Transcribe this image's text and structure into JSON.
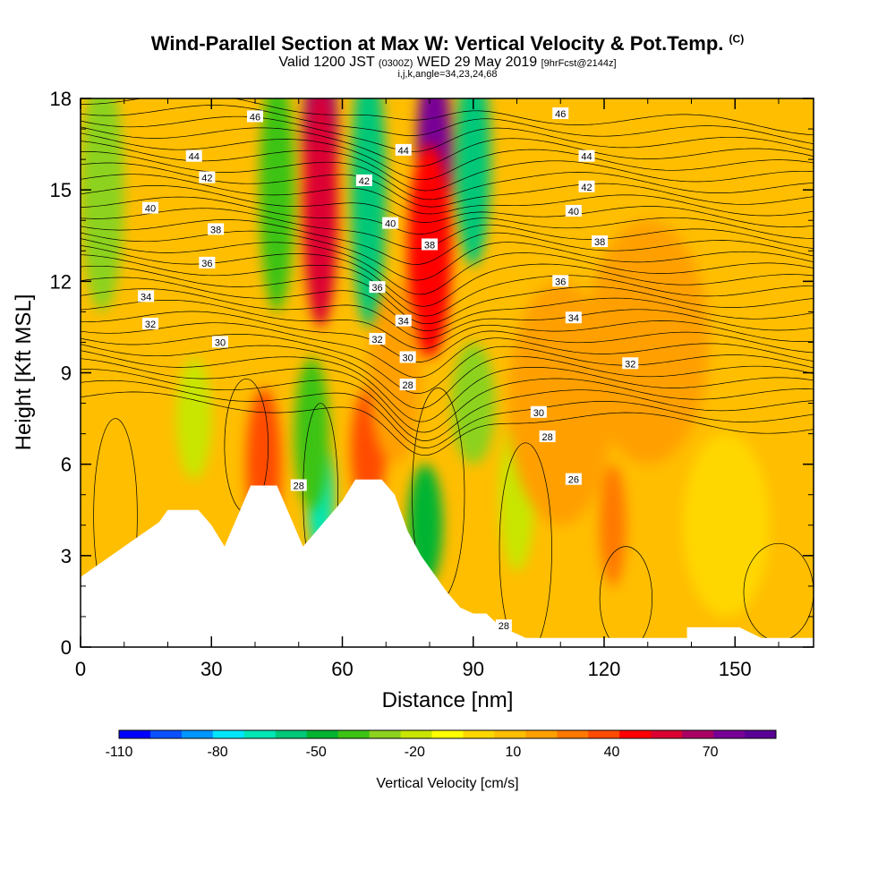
{
  "header": {
    "title_main": "Wind-Parallel Section at Max W: Vertical Velocity & Pot.Temp.",
    "title_mark": "(C)",
    "subtitle_a": "Valid 1200 JST",
    "subtitle_b": "(0300Z)",
    "subtitle_c": "WED 29 May 2019",
    "subtitle_d": "[9hrFcst@2144z]",
    "info_line": "i,j,k,angle=34,23,24,68"
  },
  "chart_data": {
    "type": "heatmap",
    "xlabel": "Distance [nm]",
    "ylabel": "Height [Kft MSL]",
    "xlim": [
      0,
      168
    ],
    "ylim": [
      0,
      18
    ],
    "x_ticks": [
      "0",
      "30",
      "60",
      "90",
      "120",
      "150"
    ],
    "x_tick_values": [
      0,
      30,
      60,
      90,
      120,
      150
    ],
    "y_ticks": [
      "0",
      "3",
      "6",
      "9",
      "12",
      "15",
      "18"
    ],
    "y_tick_values": [
      0,
      3,
      6,
      9,
      12,
      15,
      18
    ],
    "grid": false,
    "background_value_cms": 5,
    "vertical_velocity_features": [
      {
        "x": 55,
        "y": 16.5,
        "w": 4,
        "h": 3.0,
        "value": 80
      },
      {
        "x": 55,
        "y": 14.5,
        "w": 4,
        "h": 4.0,
        "value": 55
      },
      {
        "x": 81,
        "y": 16.0,
        "w": 4,
        "h": 3.5,
        "value": 75
      },
      {
        "x": 80,
        "y": 13.0,
        "w": 5,
        "h": 3.5,
        "value": 50
      },
      {
        "x": 66,
        "y": 15.0,
        "w": 4,
        "h": 4.5,
        "value": -60
      },
      {
        "x": 90,
        "y": 16.0,
        "w": 4,
        "h": 3.5,
        "value": -60
      },
      {
        "x": 45,
        "y": 15.0,
        "w": 4,
        "h": 4.0,
        "value": -40
      },
      {
        "x": 5,
        "y": 15.0,
        "w": 5,
        "h": 4.0,
        "value": -30
      },
      {
        "x": 55,
        "y": 5.0,
        "w": 3,
        "h": 2.0,
        "value": -65
      },
      {
        "x": 53,
        "y": 7.0,
        "w": 4,
        "h": 2.5,
        "value": -40
      },
      {
        "x": 79,
        "y": 4.0,
        "w": 4,
        "h": 2.0,
        "value": -50
      },
      {
        "x": 90,
        "y": 8.0,
        "w": 5,
        "h": 2.0,
        "value": -30
      },
      {
        "x": 100,
        "y": 5.0,
        "w": 4,
        "h": 2.5,
        "value": -20
      },
      {
        "x": 26,
        "y": 7.5,
        "w": 4,
        "h": 2.0,
        "value": -20
      },
      {
        "x": 42,
        "y": 6.0,
        "w": 4,
        "h": 2.5,
        "value": 35
      },
      {
        "x": 66,
        "y": 6.5,
        "w": 4,
        "h": 2.0,
        "value": 35
      },
      {
        "x": 122,
        "y": 4.0,
        "w": 3,
        "h": 2.0,
        "value": 30
      },
      {
        "x": 72,
        "y": 9.0,
        "w": 6,
        "h": 3.0,
        "value": 20
      },
      {
        "x": 130,
        "y": 10.0,
        "w": 14,
        "h": 4.0,
        "value": 15
      },
      {
        "x": 148,
        "y": 4.0,
        "w": 10,
        "h": 3.0,
        "value": 0
      },
      {
        "x": 110,
        "y": 8.0,
        "w": 12,
        "h": 4.0,
        "value": 15
      }
    ],
    "terrain_kft": [
      [
        0,
        2.3
      ],
      [
        3,
        2.6
      ],
      [
        6,
        2.9
      ],
      [
        9,
        3.2
      ],
      [
        12,
        3.5
      ],
      [
        15,
        3.8
      ],
      [
        18,
        4.1
      ],
      [
        20,
        4.5
      ],
      [
        27,
        4.5
      ],
      [
        30,
        4.0
      ],
      [
        33,
        3.3
      ],
      [
        36,
        4.3
      ],
      [
        39,
        5.3
      ],
      [
        45,
        5.3
      ],
      [
        48,
        4.3
      ],
      [
        51,
        3.3
      ],
      [
        54,
        3.8
      ],
      [
        57,
        4.3
      ],
      [
        60,
        4.8
      ],
      [
        63,
        5.5
      ],
      [
        69,
        5.5
      ],
      [
        72,
        5.0
      ],
      [
        75,
        3.8
      ],
      [
        78,
        3.0
      ],
      [
        81,
        2.4
      ],
      [
        84,
        1.8
      ],
      [
        87,
        1.3
      ],
      [
        90,
        1.1
      ],
      [
        93,
        1.1
      ],
      [
        96,
        0.7
      ],
      [
        99,
        0.5
      ],
      [
        102,
        0.3
      ],
      [
        139,
        0.3
      ],
      [
        139,
        0.65
      ],
      [
        151,
        0.65
      ],
      [
        156,
        0.3
      ],
      [
        168,
        0.3
      ]
    ],
    "theta_contours": {
      "levels": [
        26,
        28,
        30,
        32,
        34,
        36,
        38,
        40,
        42,
        44,
        46
      ],
      "labels": [
        {
          "text": "46",
          "x": 40,
          "y": 17.4
        },
        {
          "text": "44",
          "x": 26,
          "y": 16.1
        },
        {
          "text": "42",
          "x": 29,
          "y": 15.4
        },
        {
          "text": "40",
          "x": 16,
          "y": 14.4
        },
        {
          "text": "38",
          "x": 31,
          "y": 13.7
        },
        {
          "text": "36",
          "x": 29,
          "y": 12.6
        },
        {
          "text": "34",
          "x": 15,
          "y": 11.5
        },
        {
          "text": "32",
          "x": 16,
          "y": 10.6
        },
        {
          "text": "30",
          "x": 32,
          "y": 10.0
        },
        {
          "text": "42",
          "x": 65,
          "y": 15.3
        },
        {
          "text": "44",
          "x": 74,
          "y": 16.3
        },
        {
          "text": "40",
          "x": 71,
          "y": 13.9
        },
        {
          "text": "38",
          "x": 80,
          "y": 13.2
        },
        {
          "text": "36",
          "x": 68,
          "y": 11.8
        },
        {
          "text": "34",
          "x": 74,
          "y": 10.7
        },
        {
          "text": "32",
          "x": 68,
          "y": 10.1
        },
        {
          "text": "30",
          "x": 75,
          "y": 9.5
        },
        {
          "text": "28",
          "x": 75,
          "y": 8.6
        },
        {
          "text": "46",
          "x": 110,
          "y": 17.5
        },
        {
          "text": "44",
          "x": 116,
          "y": 16.1
        },
        {
          "text": "42",
          "x": 116,
          "y": 15.1
        },
        {
          "text": "40",
          "x": 113,
          "y": 14.3
        },
        {
          "text": "38",
          "x": 119,
          "y": 13.3
        },
        {
          "text": "36",
          "x": 110,
          "y": 12.0
        },
        {
          "text": "34",
          "x": 113,
          "y": 10.8
        },
        {
          "text": "32",
          "x": 126,
          "y": 9.3
        },
        {
          "text": "30",
          "x": 105,
          "y": 7.7
        },
        {
          "text": "28",
          "x": 107,
          "y": 6.9
        },
        {
          "text": "26",
          "x": 113,
          "y": 5.5
        },
        {
          "text": "28",
          "x": 50,
          "y": 5.3
        },
        {
          "text": "28",
          "x": 97,
          "y": 0.7
        }
      ]
    },
    "colorbar": {
      "label": "Vertical Velocity [cm/s]",
      "tick_labels": [
        "-110",
        "-80",
        "-50",
        "-20",
        "10",
        "40",
        "70"
      ],
      "tick_values": [
        -110,
        -80,
        -50,
        -20,
        10,
        40,
        70
      ],
      "min": -110,
      "max": 90,
      "colors": [
        "#0000ff",
        "#0a50ff",
        "#0096ff",
        "#00e6ff",
        "#00e6b4",
        "#00c878",
        "#00b432",
        "#3cc314",
        "#8cd21e",
        "#c8e600",
        "#ffff00",
        "#ffd700",
        "#ffbe00",
        "#ffa000",
        "#ff7800",
        "#ff4b00",
        "#ff0000",
        "#dc0032",
        "#aa0064",
        "#780096",
        "#5a0096"
      ]
    }
  }
}
